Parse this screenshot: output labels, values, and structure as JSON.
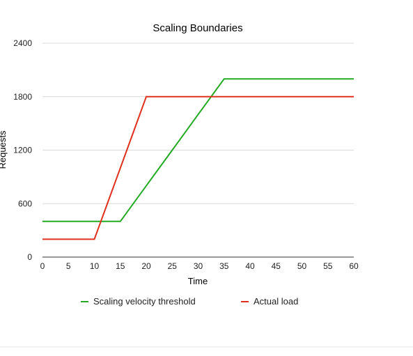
{
  "chart_data": {
    "type": "line",
    "title": "Scaling Boundaries",
    "xlabel": "Time",
    "ylabel": "Requests",
    "x": [
      0,
      5,
      10,
      15,
      20,
      25,
      30,
      35,
      40,
      45,
      50,
      55,
      60
    ],
    "xlim": [
      0,
      60
    ],
    "ylim": [
      0,
      2400
    ],
    "xticks": [
      0,
      5,
      10,
      15,
      20,
      25,
      30,
      35,
      40,
      45,
      50,
      55,
      60
    ],
    "yticks": [
      0,
      600,
      1200,
      1800,
      2400
    ],
    "grid": true,
    "legend_position": "bottom",
    "series": [
      {
        "name": "Scaling velocity threshold",
        "color": "#22aa22",
        "values": [
          400,
          400,
          400,
          400,
          800,
          1200,
          1600,
          2000,
          2000,
          2000,
          2000,
          2000,
          2000
        ]
      },
      {
        "name": "Actual load",
        "color": "#e0301e",
        "values": [
          200,
          200,
          200,
          1000,
          1800,
          1800,
          1800,
          1800,
          1800,
          1800,
          1800,
          1800,
          1800
        ]
      }
    ]
  }
}
